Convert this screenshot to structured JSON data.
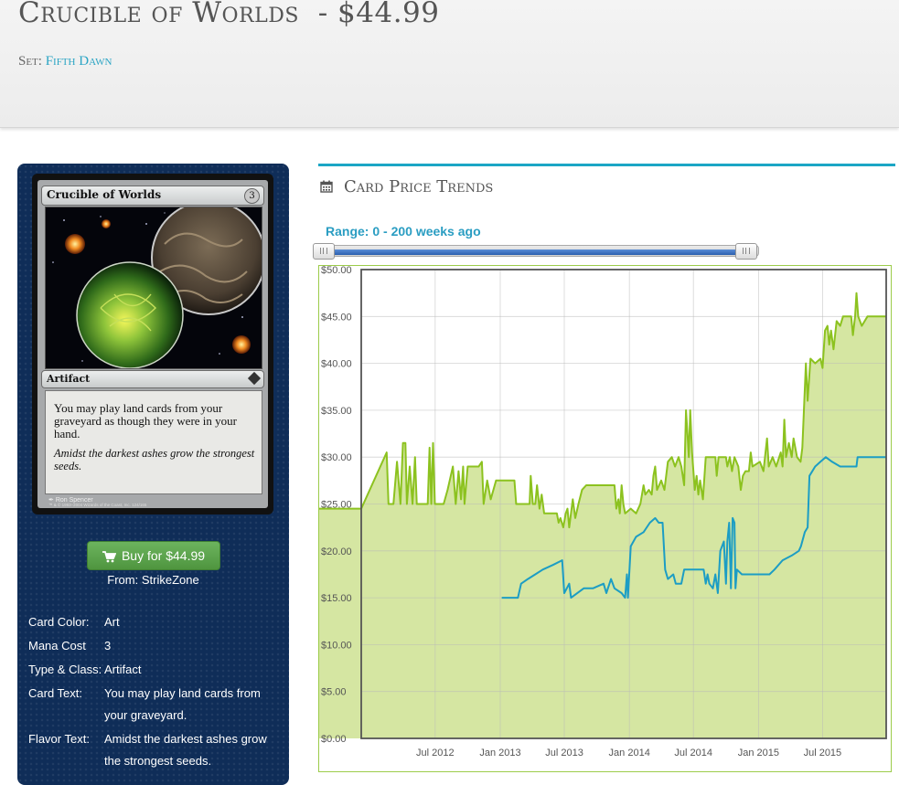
{
  "header": {
    "card_name": "Crucible of Worlds",
    "price_title": "- $44.99",
    "set_label": "Set:",
    "set_name": "Fifth Dawn"
  },
  "card_image": {
    "name": "Crucible of Worlds",
    "mana_cost": "3",
    "type_line": "Artifact",
    "rules_text": "You may play land cards from your graveyard as though they were in your hand.",
    "flavor_text": "Amidst the darkest ashes grow the strongest seeds.",
    "artist": "Ron Spencer",
    "copyright": "™ & © 1993–2004 Wizards of the Coast, Inc. 124/165"
  },
  "buy": {
    "label": "Buy for $44.99",
    "from": "From: StrikeZone"
  },
  "details": {
    "color_label": "Card Color:",
    "color_value": "Art",
    "mana_label": "Mana Cost",
    "mana_value": "3",
    "type_label": "Type & Class:",
    "type_value": "Artifact",
    "text_label": "Card Text:",
    "text_value": "You may play land cards from your graveyard.",
    "flavor_label": "Flavor Text:",
    "flavor_value": "Amidst the darkest ashes grow the strongest seeds."
  },
  "trends": {
    "title": "Card Price Trends",
    "icon": "calendar-icon",
    "range_label": "Range: 0 - 200 weeks ago",
    "range_start_weeks": 0,
    "range_end_weeks": 200
  },
  "colors": {
    "accent": "#1ba6c5",
    "sidebar_bg": "#0f2d58",
    "buy_button": "#5aa54a",
    "paper_line": "#8cc21f",
    "paper_fill": "#d5e6a2",
    "foil_line": "#1c9dc4",
    "range_label": "#2a9dc2"
  },
  "chart_data": {
    "type": "area",
    "title": "",
    "xlabel": "",
    "ylabel": "",
    "ylim": [
      0,
      50
    ],
    "yticks": [
      "$0.00",
      "$5.00",
      "$10.00",
      "$15.00",
      "$20.00",
      "$25.00",
      "$30.00",
      "$35.00",
      "$40.00",
      "$45.00",
      "$50.00"
    ],
    "xlim": [
      "2011-12-05",
      "2015-12-28"
    ],
    "xticks": [
      {
        "date": "2012-07-01",
        "label": "Jul 2012"
      },
      {
        "date": "2013-01-01",
        "label": "Jan 2013"
      },
      {
        "date": "2013-07-01",
        "label": "Jul 2013"
      },
      {
        "date": "2014-01-01",
        "label": "Jan 2014"
      },
      {
        "date": "2014-07-01",
        "label": "Jul 2014"
      },
      {
        "date": "2015-01-01",
        "label": "Jan 2015"
      },
      {
        "date": "2015-07-01",
        "label": "Jul 2015"
      }
    ],
    "grid": true,
    "series": [
      {
        "color": "#8cc21f",
        "fill": "#d5e6a2",
        "style": "area",
        "points": [
          [
            "2011-12-05",
            24.5
          ],
          [
            "2012-02-15",
            30.5
          ],
          [
            "2012-02-20",
            25.0
          ],
          [
            "2012-03-05",
            25.0
          ],
          [
            "2012-03-15",
            29.5
          ],
          [
            "2012-03-25",
            25.0
          ],
          [
            "2012-04-01",
            31.5
          ],
          [
            "2012-04-08",
            31.5
          ],
          [
            "2012-04-12",
            25.0
          ],
          [
            "2012-04-20",
            29.0
          ],
          [
            "2012-04-28",
            25.0
          ],
          [
            "2012-05-05",
            30.0
          ],
          [
            "2012-05-10",
            25.0
          ],
          [
            "2012-06-10",
            25.0
          ],
          [
            "2012-06-15",
            31.0
          ],
          [
            "2012-06-20",
            25.0
          ],
          [
            "2012-06-25",
            31.5
          ],
          [
            "2012-06-30",
            25.0
          ],
          [
            "2012-07-25",
            25.0
          ],
          [
            "2012-08-05",
            26.5
          ],
          [
            "2012-08-20",
            29.0
          ],
          [
            "2012-08-28",
            25.0
          ],
          [
            "2012-09-05",
            28.5
          ],
          [
            "2012-09-12",
            25.5
          ],
          [
            "2012-09-18",
            29.0
          ],
          [
            "2012-09-22",
            25.0
          ],
          [
            "2012-10-01",
            29.0
          ],
          [
            "2012-11-01",
            29.0
          ],
          [
            "2012-11-10",
            29.5
          ],
          [
            "2012-11-15",
            25.0
          ],
          [
            "2012-11-25",
            27.5
          ],
          [
            "2012-12-05",
            25.5
          ],
          [
            "2012-12-20",
            27.5
          ],
          [
            "2013-02-10",
            27.5
          ],
          [
            "2013-02-15",
            25.0
          ],
          [
            "2013-03-25",
            25.0
          ],
          [
            "2013-03-28",
            28.0
          ],
          [
            "2013-04-03",
            25.0
          ],
          [
            "2013-04-10",
            25.0
          ],
          [
            "2013-04-15",
            27.0
          ],
          [
            "2013-04-22",
            24.5
          ],
          [
            "2013-04-28",
            26.0
          ],
          [
            "2013-05-05",
            24.0
          ],
          [
            "2013-06-10",
            24.0
          ],
          [
            "2013-06-15",
            23.0
          ],
          [
            "2013-06-20",
            23.5
          ],
          [
            "2013-06-28",
            22.5
          ],
          [
            "2013-07-05",
            24.0
          ],
          [
            "2013-07-10",
            24.5
          ],
          [
            "2013-07-15",
            22.5
          ],
          [
            "2013-07-25",
            25.5
          ],
          [
            "2013-08-01",
            23.5
          ],
          [
            "2013-08-10",
            25.0
          ],
          [
            "2013-08-20",
            26.5
          ],
          [
            "2013-09-01",
            27.0
          ],
          [
            "2013-11-20",
            27.0
          ],
          [
            "2013-11-25",
            24.5
          ],
          [
            "2013-12-01",
            25.5
          ],
          [
            "2013-12-05",
            24.0
          ],
          [
            "2013-12-10",
            27.0
          ],
          [
            "2013-12-15",
            25.0
          ],
          [
            "2013-12-20",
            24.0
          ],
          [
            "2014-01-05",
            24.5
          ],
          [
            "2014-01-20",
            24.0
          ],
          [
            "2014-02-01",
            25.0
          ],
          [
            "2014-02-10",
            27.0
          ],
          [
            "2014-02-15",
            26.0
          ],
          [
            "2014-02-25",
            26.5
          ],
          [
            "2014-03-05",
            26.0
          ],
          [
            "2014-03-10",
            28.0
          ],
          [
            "2014-03-15",
            29.0
          ],
          [
            "2014-03-20",
            26.5
          ],
          [
            "2014-04-01",
            27.5
          ],
          [
            "2014-04-10",
            26.5
          ],
          [
            "2014-04-20",
            29.5
          ],
          [
            "2014-05-01",
            30.0
          ],
          [
            "2014-05-10",
            29.0
          ],
          [
            "2014-05-20",
            30.0
          ],
          [
            "2014-05-28",
            29.0
          ],
          [
            "2014-06-05",
            27.0
          ],
          [
            "2014-06-10",
            35.0
          ],
          [
            "2014-06-15",
            32.0
          ],
          [
            "2014-06-18",
            30.0
          ],
          [
            "2014-06-22",
            35.0
          ],
          [
            "2014-06-27",
            30.5
          ],
          [
            "2014-07-05",
            26.5
          ],
          [
            "2014-07-10",
            28.0
          ],
          [
            "2014-07-15",
            26.0
          ],
          [
            "2014-07-20",
            27.5
          ],
          [
            "2014-07-28",
            25.5
          ],
          [
            "2014-08-05",
            30.0
          ],
          [
            "2014-09-01",
            30.0
          ],
          [
            "2014-09-05",
            28.0
          ],
          [
            "2014-09-10",
            30.0
          ],
          [
            "2014-10-01",
            30.0
          ],
          [
            "2014-10-05",
            29.0
          ],
          [
            "2014-10-12",
            30.0
          ],
          [
            "2014-10-18",
            28.5
          ],
          [
            "2014-10-25",
            30.0
          ],
          [
            "2014-11-05",
            29.0
          ],
          [
            "2014-11-12",
            26.5
          ],
          [
            "2014-11-18",
            28.0
          ],
          [
            "2014-11-25",
            28.5
          ],
          [
            "2014-12-05",
            28.5
          ],
          [
            "2014-12-10",
            30.5
          ],
          [
            "2014-12-15",
            29.0
          ],
          [
            "2015-01-05",
            29.5
          ],
          [
            "2015-01-15",
            28.5
          ],
          [
            "2015-01-25",
            32.0
          ],
          [
            "2015-01-30",
            29.0
          ],
          [
            "2015-02-10",
            30.0
          ],
          [
            "2015-02-20",
            29.0
          ],
          [
            "2015-03-05",
            30.5
          ],
          [
            "2015-03-10",
            29.0
          ],
          [
            "2015-03-15",
            34.0
          ],
          [
            "2015-03-20",
            30.0
          ],
          [
            "2015-03-28",
            31.5
          ],
          [
            "2015-04-05",
            30.0
          ],
          [
            "2015-04-10",
            32.0
          ],
          [
            "2015-04-15",
            31.0
          ],
          [
            "2015-04-20",
            30.0
          ],
          [
            "2015-04-30",
            29.5
          ],
          [
            "2015-05-05",
            31.0
          ],
          [
            "2015-05-15",
            40.0
          ],
          [
            "2015-05-20",
            36.0
          ],
          [
            "2015-05-28",
            40.5
          ],
          [
            "2015-06-10",
            40.0
          ],
          [
            "2015-06-25",
            40.5
          ],
          [
            "2015-07-01",
            39.5
          ],
          [
            "2015-07-08",
            43.5
          ],
          [
            "2015-07-15",
            44.0
          ],
          [
            "2015-07-20",
            42.0
          ],
          [
            "2015-07-25",
            43.5
          ],
          [
            "2015-08-01",
            41.5
          ],
          [
            "2015-08-10",
            44.5
          ],
          [
            "2015-08-20",
            44.0
          ],
          [
            "2015-08-28",
            45.0
          ],
          [
            "2015-09-20",
            45.0
          ],
          [
            "2015-09-25",
            43.0
          ],
          [
            "2015-10-01",
            45.0
          ],
          [
            "2015-10-05",
            47.5
          ],
          [
            "2015-10-10",
            45.0
          ],
          [
            "2015-10-20",
            44.0
          ],
          [
            "2015-11-05",
            45.0
          ],
          [
            "2015-12-28",
            45.0
          ]
        ]
      },
      {
        "color": "#1c9dc4",
        "style": "line",
        "points": [
          [
            "2013-01-05",
            15.0
          ],
          [
            "2013-02-20",
            15.0
          ],
          [
            "2013-03-01",
            16.5
          ],
          [
            "2013-03-20",
            17.0
          ],
          [
            "2013-04-10",
            17.5
          ],
          [
            "2013-05-01",
            18.0
          ],
          [
            "2013-05-30",
            18.5
          ],
          [
            "2013-06-25",
            19.0
          ],
          [
            "2013-07-01",
            15.5
          ],
          [
            "2013-07-15",
            16.5
          ],
          [
            "2013-07-20",
            15.0
          ],
          [
            "2013-08-25",
            16.0
          ],
          [
            "2013-09-20",
            16.0
          ],
          [
            "2013-10-20",
            16.5
          ],
          [
            "2013-10-28",
            15.5
          ],
          [
            "2013-11-10",
            17.0
          ],
          [
            "2013-11-20",
            16.0
          ],
          [
            "2013-12-10",
            15.5
          ],
          [
            "2013-12-20",
            15.0
          ],
          [
            "2013-12-25",
            17.5
          ],
          [
            "2013-12-28",
            15.0
          ],
          [
            "2014-01-05",
            20.5
          ],
          [
            "2014-01-20",
            21.5
          ],
          [
            "2014-02-10",
            22.0
          ],
          [
            "2014-02-28",
            23.0
          ],
          [
            "2014-03-15",
            23.5
          ],
          [
            "2014-03-25",
            23.0
          ],
          [
            "2014-04-05",
            23.0
          ],
          [
            "2014-04-12",
            18.0
          ],
          [
            "2014-04-20",
            17.0
          ],
          [
            "2014-05-05",
            17.5
          ],
          [
            "2014-05-12",
            16.5
          ],
          [
            "2014-05-28",
            16.5
          ],
          [
            "2014-06-05",
            18.0
          ],
          [
            "2014-06-25",
            18.0
          ],
          [
            "2014-07-10",
            18.0
          ],
          [
            "2014-07-30",
            18.0
          ],
          [
            "2014-08-05",
            16.5
          ],
          [
            "2014-08-10",
            17.5
          ],
          [
            "2014-08-15",
            16.5
          ],
          [
            "2014-08-25",
            16.0
          ],
          [
            "2014-09-01",
            17.5
          ],
          [
            "2014-09-08",
            15.5
          ],
          [
            "2014-09-15",
            20.0
          ],
          [
            "2014-09-25",
            21.0
          ],
          [
            "2014-10-01",
            16.5
          ],
          [
            "2014-10-05",
            21.0
          ],
          [
            "2014-10-10",
            23.0
          ],
          [
            "2014-10-15",
            16.0
          ],
          [
            "2014-10-20",
            23.5
          ],
          [
            "2014-10-25",
            23.0
          ],
          [
            "2014-10-28",
            16.0
          ],
          [
            "2014-11-01",
            18.0
          ],
          [
            "2014-11-15",
            17.5
          ],
          [
            "2014-12-20",
            17.5
          ],
          [
            "2015-02-01",
            17.5
          ],
          [
            "2015-02-15",
            18.0
          ],
          [
            "2015-03-10",
            19.0
          ],
          [
            "2015-04-05",
            19.5
          ],
          [
            "2015-04-25",
            20.0
          ],
          [
            "2015-05-01",
            20.5
          ],
          [
            "2015-05-12",
            22.0
          ],
          [
            "2015-05-20",
            22.5
          ],
          [
            "2015-05-25",
            28.0
          ],
          [
            "2015-06-10",
            29.0
          ],
          [
            "2015-06-25",
            29.5
          ],
          [
            "2015-07-10",
            30.0
          ],
          [
            "2015-07-28",
            29.5
          ],
          [
            "2015-08-20",
            29.0
          ],
          [
            "2015-09-10",
            29.0
          ],
          [
            "2015-10-05",
            29.0
          ],
          [
            "2015-10-08",
            30.0
          ],
          [
            "2015-12-28",
            30.0
          ]
        ]
      }
    ]
  }
}
